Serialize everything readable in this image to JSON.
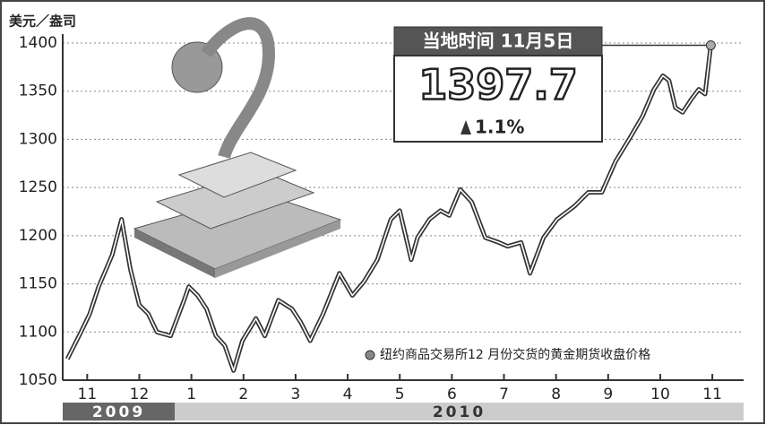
{
  "chart_data": {
    "type": "line",
    "y_unit": "美元／盎司",
    "ylim": [
      1050,
      1400
    ],
    "yticks": [
      1050,
      1100,
      1150,
      1200,
      1250,
      1300,
      1350,
      1400
    ],
    "grid": true,
    "xlim": [
      -0.47,
      12.6
    ],
    "xticks": [
      {
        "value": 0,
        "label": "11"
      },
      {
        "value": 1,
        "label": "12"
      },
      {
        "value": 2,
        "label": "1"
      },
      {
        "value": 3,
        "label": "2"
      },
      {
        "value": 4,
        "label": "3"
      },
      {
        "value": 5,
        "label": "4"
      },
      {
        "value": 6,
        "label": "5"
      },
      {
        "value": 7,
        "label": "6"
      },
      {
        "value": 8,
        "label": "7"
      },
      {
        "value": 9,
        "label": "8"
      },
      {
        "value": 10,
        "label": "9"
      },
      {
        "value": 11,
        "label": "10"
      },
      {
        "value": 12,
        "label": "11"
      }
    ],
    "years": [
      {
        "label": "2009",
        "from": -0.47,
        "to": 1.68
      },
      {
        "label": "2010",
        "from": 1.68,
        "to": 12.6
      }
    ],
    "x": [
      -0.38,
      -0.12,
      0.05,
      0.22,
      0.48,
      0.66,
      0.83,
      1.0,
      1.17,
      1.34,
      1.6,
      1.86,
      1.95,
      2.12,
      2.29,
      2.47,
      2.64,
      2.81,
      2.98,
      3.24,
      3.41,
      3.67,
      3.93,
      4.1,
      4.28,
      4.53,
      4.84,
      5.09,
      5.31,
      5.57,
      5.83,
      6.0,
      6.22,
      6.34,
      6.57,
      6.78,
      6.95,
      7.16,
      7.38,
      7.64,
      7.9,
      8.07,
      8.33,
      8.5,
      8.76,
      9.02,
      9.36,
      9.62,
      9.88,
      10.14,
      10.4,
      10.66,
      10.88,
      11.05,
      11.17,
      11.29,
      11.43,
      11.6,
      11.74,
      11.86,
      11.97
    ],
    "series": [
      {
        "name": "纽约商品交易所12 月份交货的黄金期货收盘价格",
        "color": "#333333",
        "values": [
          1072,
          1100,
          1119,
          1147,
          1180,
          1217,
          1165,
          1128,
          1119,
          1100,
          1096,
          1133,
          1147,
          1138,
          1124,
          1096,
          1086,
          1060,
          1091,
          1114,
          1096,
          1133,
          1124,
          1110,
          1091,
          1119,
          1161,
          1138,
          1152,
          1175,
          1217,
          1226,
          1175,
          1198,
          1217,
          1226,
          1221,
          1248,
          1235,
          1198,
          1193,
          1189,
          1193,
          1161,
          1198,
          1217,
          1231,
          1245,
          1245,
          1277,
          1300,
          1324,
          1352,
          1366,
          1361,
          1333,
          1328,
          1342,
          1352,
          1347,
          1397.7
        ]
      }
    ],
    "callout": {
      "date": "当地时间 11月5日",
      "value": 1397.7,
      "change": "1.1%"
    }
  }
}
